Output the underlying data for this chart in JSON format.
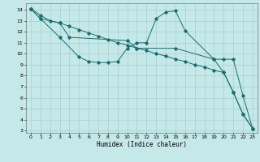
{
  "xlabel": "Humidex (Indice chaleur)",
  "xlim": [
    -0.5,
    23.5
  ],
  "ylim": [
    2.8,
    14.6
  ],
  "xticks": [
    0,
    1,
    2,
    3,
    4,
    5,
    6,
    7,
    8,
    9,
    10,
    11,
    12,
    13,
    14,
    15,
    16,
    17,
    18,
    19,
    20,
    21,
    22,
    23
  ],
  "yticks": [
    3,
    4,
    5,
    6,
    7,
    8,
    9,
    10,
    11,
    12,
    13,
    14
  ],
  "bg_color": "#c5e8e8",
  "grid_color": "#a8d0d0",
  "line_color": "#1a6e6e",
  "line1_x": [
    0,
    1,
    2,
    3,
    4,
    5,
    6,
    7,
    8,
    9,
    10,
    11,
    12,
    13,
    14,
    15,
    16,
    17,
    18,
    19,
    20,
    21,
    22,
    23
  ],
  "line1_y": [
    14.1,
    13.5,
    13.0,
    12.8,
    12.5,
    12.2,
    11.9,
    11.6,
    11.3,
    11.0,
    10.8,
    10.5,
    10.3,
    10.0,
    9.8,
    9.5,
    9.3,
    9.0,
    8.8,
    8.5,
    8.3,
    6.5,
    4.5,
    3.2
  ],
  "line2_x": [
    0,
    1,
    3,
    5,
    6,
    7,
    8,
    9,
    10,
    11,
    12,
    13,
    14,
    15,
    16,
    19,
    20,
    21,
    22,
    23
  ],
  "line2_y": [
    14.1,
    13.2,
    11.5,
    9.7,
    9.3,
    9.2,
    9.2,
    9.3,
    10.5,
    11.0,
    11.0,
    13.2,
    13.8,
    13.9,
    12.1,
    9.5,
    8.3,
    6.5,
    4.5,
    3.2
  ],
  "line3_x": [
    0,
    1,
    3,
    4,
    10,
    11,
    15,
    19,
    20,
    21,
    22,
    23
  ],
  "line3_y": [
    14.1,
    13.2,
    12.8,
    11.5,
    11.2,
    10.5,
    10.5,
    9.5,
    9.5,
    9.5,
    6.2,
    3.2
  ]
}
